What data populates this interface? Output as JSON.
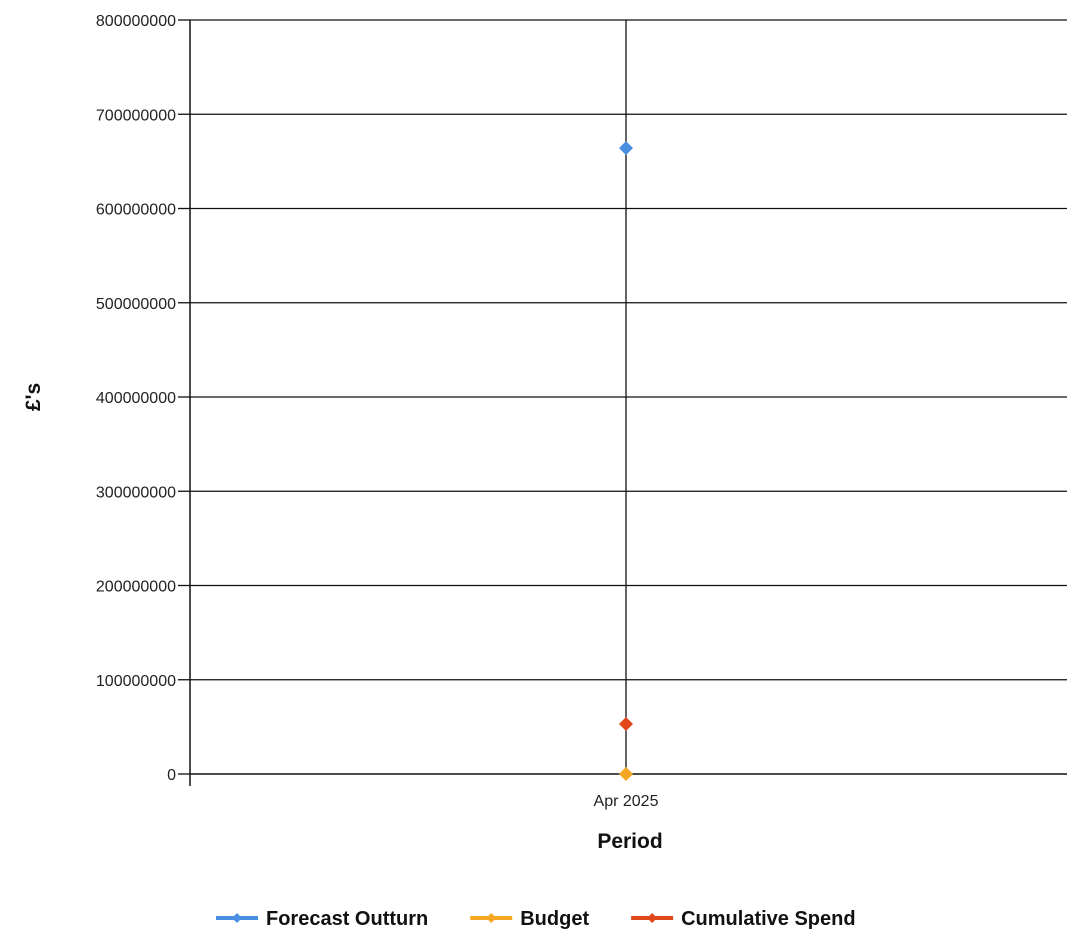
{
  "chart_data": {
    "type": "line",
    "categories": [
      "Apr 2025"
    ],
    "series": [
      {
        "name": "Forecast Outturn",
        "color": "#4a90e2",
        "values": [
          664000000
        ]
      },
      {
        "name": "Budget",
        "color": "#f5a623",
        "values": [
          0
        ]
      },
      {
        "name": "Cumulative Spend",
        "color": "#e0481b",
        "values": [
          53000000
        ]
      }
    ],
    "title": "",
    "xlabel": "Period",
    "ylabel": "£'s",
    "ylim": [
      0,
      800000000
    ],
    "yticks": [
      "0",
      "100000000",
      "200000000",
      "300000000",
      "400000000",
      "500000000",
      "600000000",
      "700000000",
      "800000000"
    ],
    "grid": true,
    "legend_position": "bottom-center"
  }
}
